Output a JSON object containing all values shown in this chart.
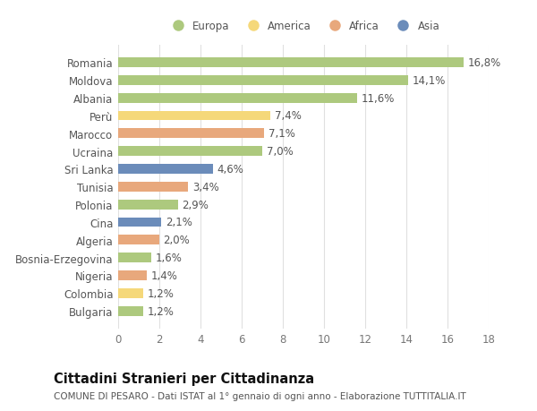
{
  "countries": [
    "Romania",
    "Moldova",
    "Albania",
    "Perù",
    "Marocco",
    "Ucraina",
    "Sri Lanka",
    "Tunisia",
    "Polonia",
    "Cina",
    "Algeria",
    "Bosnia-Erzegovina",
    "Nigeria",
    "Colombia",
    "Bulgaria"
  ],
  "values": [
    16.8,
    14.1,
    11.6,
    7.4,
    7.1,
    7.0,
    4.6,
    3.4,
    2.9,
    2.1,
    2.0,
    1.6,
    1.4,
    1.2,
    1.2
  ],
  "labels": [
    "16,8%",
    "14,1%",
    "11,6%",
    "7,4%",
    "7,1%",
    "7,0%",
    "4,6%",
    "3,4%",
    "2,9%",
    "2,1%",
    "2,0%",
    "1,6%",
    "1,4%",
    "1,2%",
    "1,2%"
  ],
  "continents": [
    "Europa",
    "Europa",
    "Europa",
    "America",
    "Africa",
    "Europa",
    "Asia",
    "Africa",
    "Europa",
    "Asia",
    "Africa",
    "Europa",
    "Africa",
    "America",
    "Europa"
  ],
  "colors": {
    "Europa": "#adc97e",
    "America": "#f5d87a",
    "Africa": "#e8a87c",
    "Asia": "#6b8cba"
  },
  "background_color": "#ffffff",
  "grid_color": "#e0e0e0",
  "title": "Cittadini Stranieri per Cittadinanza",
  "subtitle": "COMUNE DI PESARO - Dati ISTAT al 1° gennaio di ogni anno - Elaborazione TUTTITALIA.IT",
  "xlim": [
    0,
    18
  ],
  "xticks": [
    0,
    2,
    4,
    6,
    8,
    10,
    12,
    14,
    16,
    18
  ],
  "bar_height": 0.55,
  "text_fontsize": 8.5,
  "label_fontsize": 8.5,
  "title_fontsize": 10.5,
  "subtitle_fontsize": 7.5,
  "legend_entries": [
    "Europa",
    "America",
    "Africa",
    "Asia"
  ]
}
